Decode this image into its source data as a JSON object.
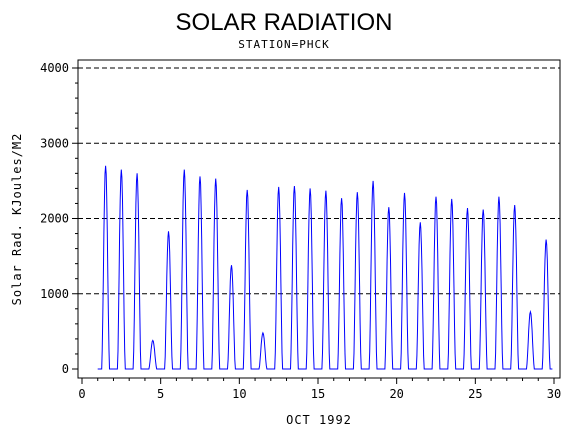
{
  "chart_data": {
    "type": "line",
    "title": "SOLAR RADIATION",
    "subtitle": "STATION=PHCK",
    "xlabel": "OCT 1992",
    "ylabel": "Solar Rad. KJoules/M2",
    "xlim": [
      0,
      30
    ],
    "ylim": [
      0,
      4000
    ],
    "x_ticks": [
      0,
      5,
      10,
      15,
      20,
      25,
      30
    ],
    "y_ticks": [
      0,
      1000,
      2000,
      3000,
      4000
    ],
    "gridlines_y": [
      1000,
      2000,
      3000,
      4000
    ],
    "grid": "horizontal dashed",
    "series": [
      {
        "color": "#0000ff",
        "daily_peaks": [
          {
            "x": 1.5,
            "y": 2700
          },
          {
            "x": 2.5,
            "y": 2650
          },
          {
            "x": 3.5,
            "y": 2600
          },
          {
            "x": 4.5,
            "y": 380
          },
          {
            "x": 5.5,
            "y": 1830
          },
          {
            "x": 6.5,
            "y": 2650
          },
          {
            "x": 7.5,
            "y": 2560
          },
          {
            "x": 8.5,
            "y": 2530
          },
          {
            "x": 9.5,
            "y": 1380
          },
          {
            "x": 10.5,
            "y": 2380
          },
          {
            "x": 11.5,
            "y": 480
          },
          {
            "x": 12.5,
            "y": 2420
          },
          {
            "x": 13.5,
            "y": 2430
          },
          {
            "x": 14.5,
            "y": 2400
          },
          {
            "x": 15.5,
            "y": 2370
          },
          {
            "x": 16.5,
            "y": 2270
          },
          {
            "x": 17.5,
            "y": 2350
          },
          {
            "x": 18.5,
            "y": 2500
          },
          {
            "x": 19.5,
            "y": 2150
          },
          {
            "x": 20.5,
            "y": 2340
          },
          {
            "x": 21.5,
            "y": 1950
          },
          {
            "x": 22.5,
            "y": 2290
          },
          {
            "x": 23.5,
            "y": 2260
          },
          {
            "x": 24.5,
            "y": 2140
          },
          {
            "x": 25.5,
            "y": 2120
          },
          {
            "x": 26.5,
            "y": 2290
          },
          {
            "x": 27.5,
            "y": 2180
          },
          {
            "x": 28.5,
            "y": 760
          },
          {
            "x": 29.5,
            "y": 1720
          }
        ]
      }
    ]
  }
}
